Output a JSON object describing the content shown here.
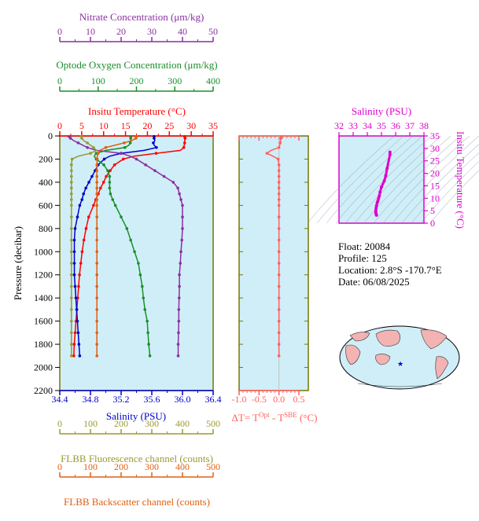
{
  "colors": {
    "nitrate": "#8b2fa0",
    "oxygen": "#1a8f2a",
    "temperature": "#ff0000",
    "salinity": "#0000cc",
    "fluorescence": "#9a9a30",
    "backscatter": "#e06010",
    "delta_t": "#ff6060",
    "ts_salinity": "#dd00cc",
    "panel_bg": "#d0eef8",
    "panel_frame": "#777700"
  },
  "axes": {
    "nitrate": {
      "title": "Nitrate Concentration (μm/kg)",
      "ticks": [
        "0",
        "10",
        "20",
        "30",
        "40",
        "50"
      ]
    },
    "oxygen": {
      "title": "Optode Oxygen Concentration (μm/kg)",
      "ticks": [
        "0",
        "100",
        "200",
        "300",
        "400"
      ]
    },
    "temperature": {
      "title": "Insitu Temperature (°C)",
      "ticks": [
        "0",
        "5",
        "10",
        "15",
        "20",
        "25",
        "30",
        "35"
      ]
    },
    "pressure": {
      "title": "Pressure (decibar)",
      "ticks": [
        "0",
        "200",
        "400",
        "600",
        "800",
        "1000",
        "1200",
        "1400",
        "1600",
        "1800",
        "2000",
        "2200"
      ]
    },
    "salinity": {
      "title": "Salinity (PSU)",
      "ticks": [
        "34.4",
        "34.8",
        "35.2",
        "35.6",
        "36.0",
        "36.4"
      ]
    },
    "fluorescence": {
      "title": "FLBB Fluorescence channel (counts)",
      "ticks": [
        "0",
        "100",
        "200",
        "300",
        "400",
        "500"
      ]
    },
    "backscatter": {
      "title": "FLBB Backscatter channel (counts)",
      "ticks": [
        "0",
        "100",
        "200",
        "300",
        "400",
        "500"
      ]
    },
    "delta_t": {
      "title_main": "ΔT= T",
      "title_sup1": "Opt",
      "title_mid": " - T",
      "title_sup2": "SBE",
      "title_end": " (°C)",
      "ticks": [
        "-1.0",
        "-0.5",
        "0.0",
        "0.5"
      ]
    },
    "ts_salinity": {
      "title": "Salinity (PSU)",
      "ticks": [
        "32",
        "33",
        "34",
        "35",
        "36",
        "37",
        "38"
      ]
    },
    "ts_temperature": {
      "title": "Insitu Temperature (°C)",
      "ticks": [
        "0",
        "5",
        "10",
        "15",
        "20",
        "25",
        "30",
        "35"
      ]
    }
  },
  "info": {
    "float": "Float:  20084",
    "profile": "Profile:  125",
    "location": "Location:  2.8°S  -170.7°E",
    "date": "Date:  06/08/2025"
  },
  "chart_data": {
    "type": "line",
    "pressure": [
      5,
      10,
      20,
      40,
      60,
      80,
      100,
      125,
      150,
      175,
      200,
      250,
      300,
      350,
      400,
      450,
      500,
      550,
      600,
      700,
      800,
      900,
      1000,
      1100,
      1200,
      1300,
      1400,
      1500,
      1600,
      1700,
      1800,
      1900
    ],
    "series": [
      {
        "name": "Insitu Temperature",
        "values": [
          28.5,
          28.6,
          28.6,
          28.5,
          28.5,
          28.4,
          28.3,
          27.5,
          22.0,
          17.0,
          14.5,
          12.5,
          11.5,
          10.6,
          10.0,
          9.3,
          8.8,
          8.2,
          7.7,
          6.6,
          6.0,
          5.5,
          5.1,
          4.8,
          4.5,
          4.3,
          4.1,
          3.9,
          3.7,
          3.5,
          3.3,
          3.2
        ]
      },
      {
        "name": "Salinity",
        "values": [
          35.63,
          35.63,
          35.63,
          35.64,
          35.62,
          35.63,
          35.66,
          35.5,
          35.2,
          35.05,
          34.98,
          34.9,
          34.86,
          34.82,
          34.78,
          34.74,
          34.71,
          34.69,
          34.66,
          34.63,
          34.6,
          34.59,
          34.59,
          34.59,
          34.59,
          34.6,
          34.61,
          34.62,
          34.63,
          34.64,
          34.65,
          34.66
        ]
      },
      {
        "name": "Oxygen",
        "values": [
          185,
          186,
          185,
          185,
          184,
          180,
          170,
          120,
          95,
          90,
          95,
          115,
          125,
          130,
          130,
          130,
          132,
          138,
          145,
          160,
          175,
          185,
          195,
          205,
          210,
          215,
          218,
          222,
          228,
          230,
          232,
          235
        ]
      },
      {
        "name": "Nitrate",
        "values": [
          3.0,
          3.2,
          3.5,
          4.5,
          6.0,
          7.5,
          9.0,
          12.0,
          20.0,
          23.0,
          25.0,
          28.0,
          31.0,
          34.0,
          37.0,
          38.5,
          39.0,
          39.5,
          40.0,
          40.0,
          40.0,
          39.8,
          39.5,
          39.3,
          39.0,
          39.0,
          38.9,
          38.8,
          38.8,
          38.7,
          38.6,
          38.6
        ]
      },
      {
        "name": "FLBB Fluorescence",
        "values": [
          70,
          70,
          72,
          78,
          90,
          100,
          110,
          120,
          100,
          60,
          40,
          38,
          38,
          38,
          38,
          38,
          38,
          38,
          38,
          38,
          38,
          38,
          38,
          38,
          38,
          38,
          38,
          38,
          38,
          38,
          38,
          38
        ]
      },
      {
        "name": "FLBB Backscatter",
        "values": [
          250,
          250,
          248,
          235,
          210,
          180,
          150,
          130,
          125,
          122,
          122,
          121,
          121,
          121,
          121,
          121,
          121,
          121,
          121,
          121,
          121,
          121,
          121,
          121,
          121,
          121,
          121,
          121,
          121,
          121,
          121,
          121
        ]
      },
      {
        "name": "Delta T",
        "values": [
          0.05,
          0.05,
          0.05,
          0.04,
          0.03,
          0.02,
          0.0,
          -0.2,
          -0.3,
          -0.15,
          -0.02,
          0.0,
          0.0,
          0.0,
          0.0,
          0.0,
          0.0,
          0.0,
          0.0,
          0.0,
          0.0,
          0.0,
          0.0,
          0.0,
          0.0,
          0.0,
          0.0,
          0.0,
          0.0,
          0.0,
          0.0,
          0.0
        ]
      }
    ],
    "xlim": {
      "temperature": [
        0,
        35
      ],
      "salinity": [
        34.4,
        36.4
      ],
      "oxygen": [
        0,
        400
      ],
      "nitrate": [
        0,
        50
      ],
      "fluorescence": [
        0,
        500
      ],
      "backscatter": [
        0,
        500
      ],
      "delta_t": [
        -1.0,
        0.5
      ]
    },
    "ylim": [
      0,
      2200
    ],
    "ts_diagram": {
      "xlim": [
        32,
        38
      ],
      "ylim": [
        0,
        35
      ],
      "points": [
        [
          35.6,
          28.5
        ],
        [
          35.6,
          27.5
        ],
        [
          35.4,
          22
        ],
        [
          35.3,
          19
        ],
        [
          35.2,
          17
        ],
        [
          35.0,
          14.5
        ],
        [
          34.9,
          12.5
        ],
        [
          34.85,
          11
        ],
        [
          34.8,
          10
        ],
        [
          34.75,
          9
        ],
        [
          34.7,
          8.2
        ],
        [
          34.65,
          7
        ],
        [
          34.62,
          6
        ],
        [
          34.6,
          5
        ],
        [
          34.6,
          4.3
        ],
        [
          34.62,
          3.7
        ],
        [
          34.65,
          3.2
        ]
      ]
    }
  }
}
